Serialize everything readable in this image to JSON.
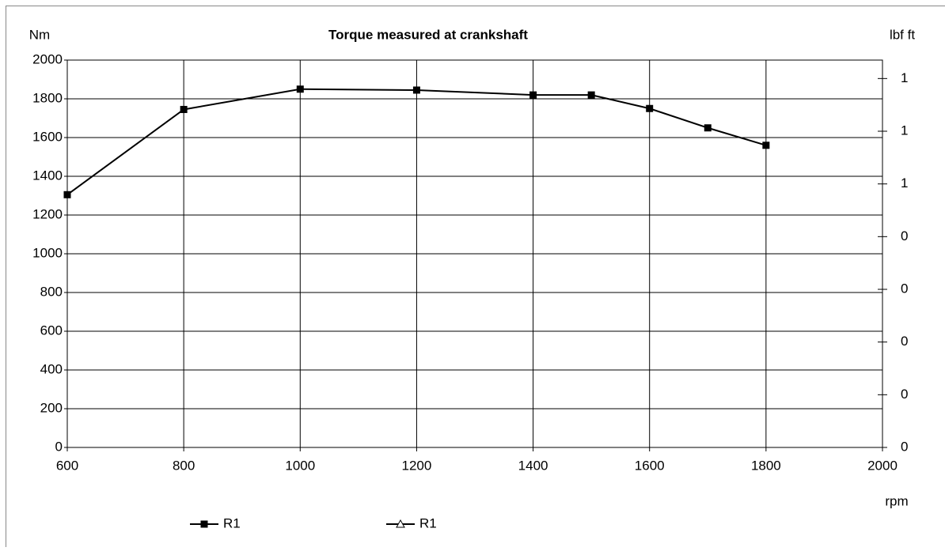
{
  "chart_data": {
    "type": "line",
    "title": "Torque measured at crankshaft",
    "y_label": "Nm",
    "y2_label": "lbf ft",
    "x_label": "rpm",
    "x": [
      600,
      800,
      1000,
      1200,
      1400,
      1500,
      1600,
      1700,
      1800
    ],
    "series": [
      {
        "name": "R1",
        "color": "#000000",
        "marker": "square",
        "values": [
          1305,
          1745,
          1850,
          1845,
          1820,
          1820,
          1750,
          1650,
          1560
        ]
      },
      {
        "name": "R1",
        "color": "#000000",
        "marker": "triangle",
        "axis": "y2",
        "values": [
          null,
          null,
          null,
          null,
          null,
          null,
          null,
          null,
          null
        ]
      }
    ],
    "xlim": [
      600,
      2000
    ],
    "xticks": [
      600,
      800,
      1000,
      1200,
      1400,
      1600,
      1800,
      2000
    ],
    "ylim": [
      0,
      2000
    ],
    "yticks": [
      0,
      200,
      400,
      600,
      800,
      1000,
      1200,
      1400,
      1600,
      1800,
      2000
    ],
    "y2lim": [
      0,
      0.735
    ],
    "y2ticks": [
      {
        "value": 0,
        "label": "0"
      },
      {
        "value": 0.1,
        "label": "0"
      },
      {
        "value": 0.2,
        "label": "0"
      },
      {
        "value": 0.3,
        "label": "0"
      },
      {
        "value": 0.4,
        "label": "0"
      },
      {
        "value": 0.5,
        "label": "1"
      },
      {
        "value": 0.6,
        "label": "1"
      },
      {
        "value": 0.7,
        "label": "1"
      }
    ],
    "grid": true,
    "legend": "bottom"
  }
}
